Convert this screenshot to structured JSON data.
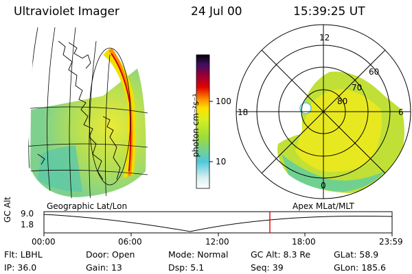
{
  "header": {
    "instrument": "Ultraviolet Imager",
    "date": "24 Jul 00",
    "time": "15:39:25 UT"
  },
  "geo_panel": {
    "label": "Geographic Lat/Lon"
  },
  "polar_panel": {
    "label": "Apex MLat/MLT",
    "mlt_labels": [
      "12",
      "18",
      "6",
      "0"
    ],
    "lat_labels": [
      "60",
      "70",
      "80"
    ]
  },
  "colorbar": {
    "unit_label": "photon cm⁻²s⁻¹",
    "ticks": [
      "100",
      "10"
    ],
    "scale": "log",
    "colors": [
      "#ffffff",
      "#4fc8dc",
      "#9bdc3c",
      "#e8e800",
      "#ff9a00",
      "#e00000",
      "#6a0030",
      "#080010"
    ]
  },
  "timeline": {
    "ylabel": "GC Alt",
    "yticks": [
      "9.0",
      "1.8"
    ],
    "xticks": [
      "00:00",
      "06:00",
      "12:00",
      "18:00",
      "23:59"
    ],
    "marker_color": "#e00000"
  },
  "status": {
    "row1": [
      {
        "label": "Flt:",
        "value": "LBHL"
      },
      {
        "label": "Door:",
        "value": "Open"
      },
      {
        "label": "Mode:",
        "value": "Normal"
      },
      {
        "label": "GC Alt:",
        "value": "8.3 Re"
      },
      {
        "label": "GLat:",
        "value": "58.9"
      }
    ],
    "row2": [
      {
        "label": "IP:",
        "value": "36.0"
      },
      {
        "label": "Gain:",
        "value": "13"
      },
      {
        "label": "Dsp:",
        "value": "5.1"
      },
      {
        "label": "Seq:",
        "value": "39"
      },
      {
        "label": "GLon:",
        "value": "185.6"
      }
    ]
  }
}
